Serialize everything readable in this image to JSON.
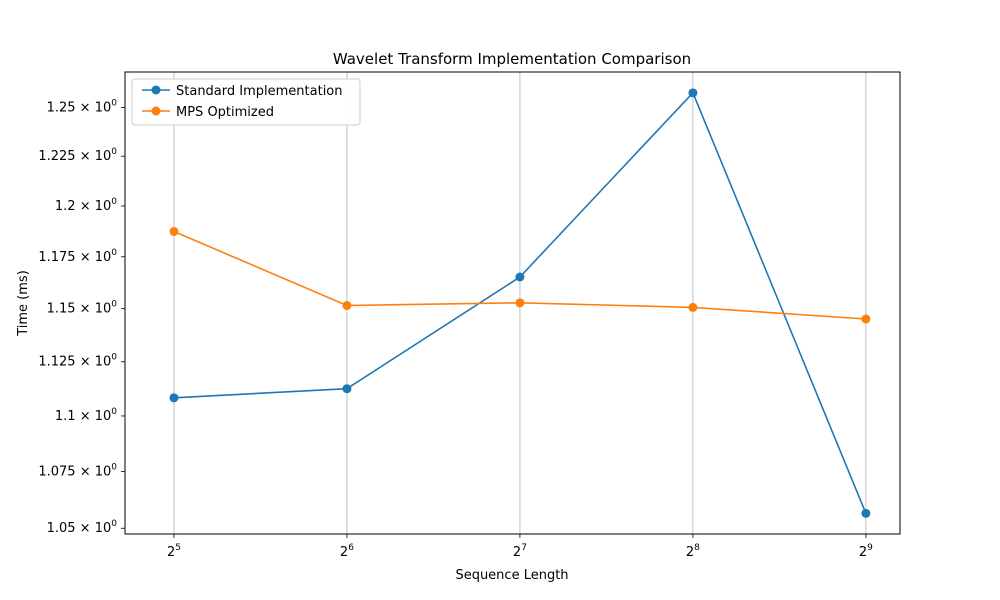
{
  "chart_data": {
    "type": "line",
    "title": "Wavelet Transform Implementation Comparison",
    "xlabel": "Sequence Length",
    "ylabel": "Time (ms)",
    "x_scale": "log2",
    "y_scale": "log",
    "x": [
      32,
      64,
      128,
      256,
      512
    ],
    "x_ticks": [
      {
        "base": "2",
        "exp": "5"
      },
      {
        "base": "2",
        "exp": "6"
      },
      {
        "base": "2",
        "exp": "7"
      },
      {
        "base": "2",
        "exp": "8"
      },
      {
        "base": "2",
        "exp": "9"
      }
    ],
    "y_ticks": [
      {
        "value": 1.05,
        "mant": "1.05",
        "exp": "0"
      },
      {
        "value": 1.075,
        "mant": "1.075",
        "exp": "0"
      },
      {
        "value": 1.1,
        "mant": "1.1",
        "exp": "0"
      },
      {
        "value": 1.125,
        "mant": "1.125",
        "exp": "0"
      },
      {
        "value": 1.15,
        "mant": "1.15",
        "exp": "0"
      },
      {
        "value": 1.175,
        "mant": "1.175",
        "exp": "0"
      },
      {
        "value": 1.2,
        "mant": "1.2",
        "exp": "0"
      },
      {
        "value": 1.225,
        "mant": "1.225",
        "exp": "0"
      },
      {
        "value": 1.25,
        "mant": "1.25",
        "exp": "0"
      }
    ],
    "xlim": [
      26.3,
      587
    ],
    "ylim": [
      1.0475,
      1.2685
    ],
    "grid": "x-major",
    "legend_position": "top-left",
    "series": [
      {
        "name": "Standard Implementation",
        "color": "#1f77b4",
        "values": [
          1.1083,
          1.1125,
          1.1652,
          1.2576,
          1.0565
        ]
      },
      {
        "name": "MPS Optimized",
        "color": "#ff7f0e",
        "values": [
          1.1874,
          1.1515,
          1.1528,
          1.1506,
          1.1451
        ]
      }
    ]
  }
}
